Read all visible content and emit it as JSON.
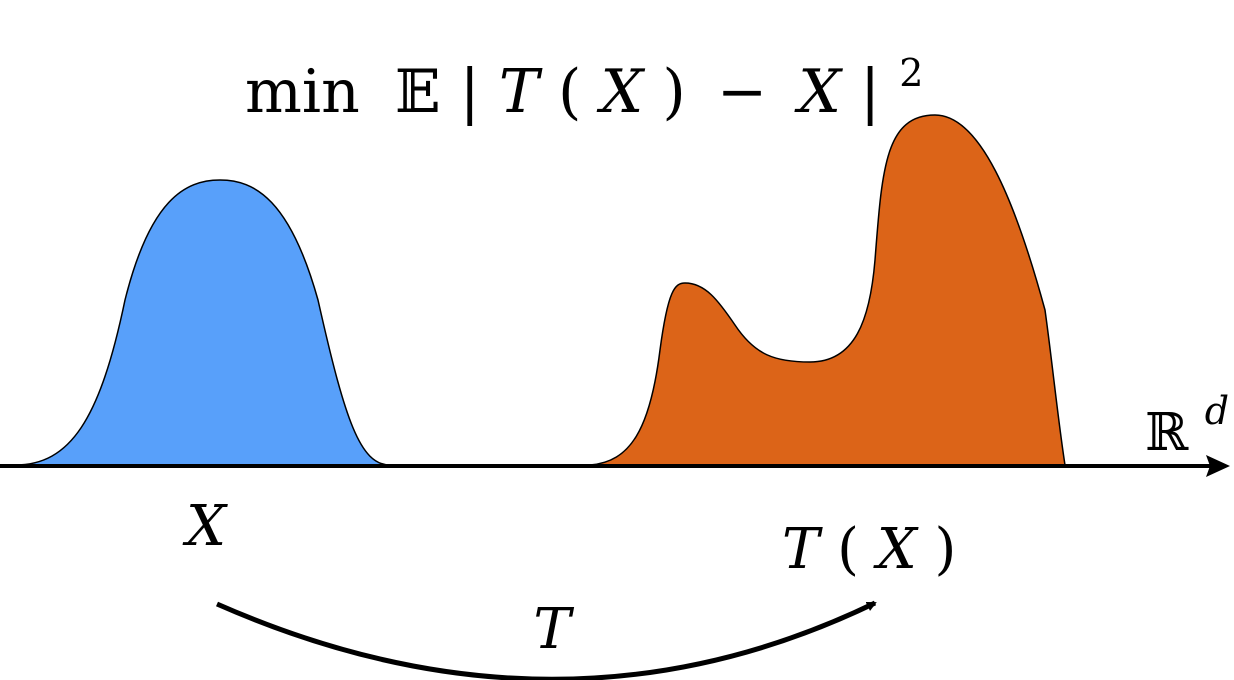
{
  "formula": {
    "min": "min",
    "expectation": "𝔼",
    "body_open": "|",
    "T": "T",
    "paren_open": "(",
    "X": "X",
    "paren_close": ")",
    "minus": "−",
    "X2": "X",
    "body_close": "|",
    "power": "2"
  },
  "labels": {
    "source": "X",
    "target_T": "T",
    "target_open": "(",
    "target_X": "X",
    "target_close": ")",
    "map": "T",
    "space": "ℝ",
    "space_exp": "d"
  },
  "colors": {
    "source_fill": "#58A0FA",
    "target_fill": "#DC6418",
    "stroke": "#000000"
  }
}
